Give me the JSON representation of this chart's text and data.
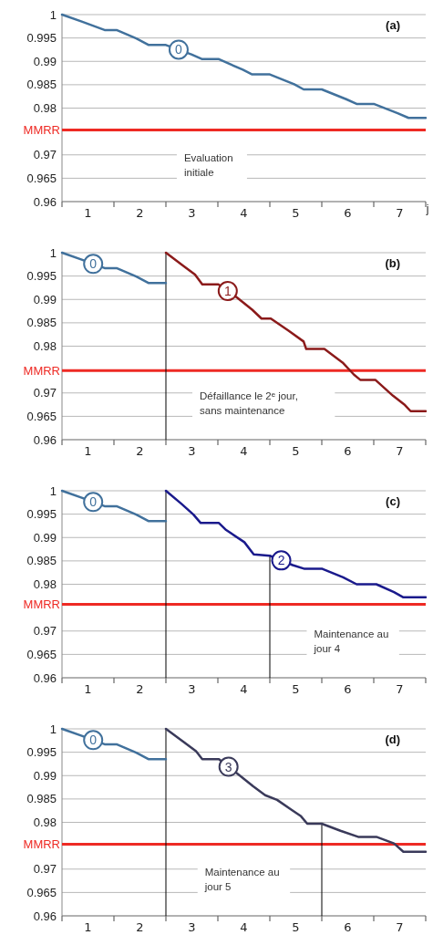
{
  "chart_data": [
    {
      "type": "line",
      "title": "(a)",
      "xlabel": "j",
      "xlim": [
        0.5,
        7.5
      ],
      "ylim": [
        0.96,
        1
      ],
      "xticks": [
        {
          "value": 0.5,
          "label": null
        },
        1,
        {
          "value": 1.5,
          "label": null
        },
        2,
        {
          "value": 2.5,
          "label": null
        },
        3,
        {
          "value": 3.5,
          "label": null
        },
        4,
        {
          "value": 4.5,
          "label": null
        },
        5,
        {
          "value": 5.5,
          "label": null
        },
        6,
        {
          "value": 6.5,
          "label": null
        },
        7,
        {
          "value": 7.5,
          "label": null
        }
      ],
      "yticks": [
        0.96,
        0.965,
        0.97,
        0.98,
        0.985,
        0.99,
        0.995,
        1
      ],
      "grid": "y",
      "legend": false,
      "marker": "none",
      "line_style": "solid",
      "series": [
        {
          "name": "0",
          "color": "#41719c",
          "x": [
            0.5,
            0.88,
            1.32,
            1.55,
            1.93,
            2.17,
            2.5,
            2.99,
            3.19,
            3.51,
            3.98,
            4.16,
            4.5,
            4.97,
            5.15,
            5.5,
            5.97,
            6.17,
            6.5,
            6.96,
            7.17,
            7.5
          ],
          "values": [
            1,
            0.9985,
            0.9967,
            0.9967,
            0.9949,
            0.9935,
            0.9935,
            0.9915,
            0.9905,
            0.9905,
            0.9882,
            0.9872,
            0.9872,
            0.9851,
            0.984,
            0.984,
            0.9819,
            0.9809,
            0.9809,
            0.9789,
            0.9779,
            0.9779
          ]
        }
      ],
      "ref_lines": [
        {
          "axis": "y",
          "value": 0.9753,
          "label": "MMRR",
          "color": "#ee2a24"
        }
      ],
      "annotations": [
        "Evaluation initiale"
      ]
    },
    {
      "type": "line",
      "title": "(b)",
      "xlim": [
        0.5,
        7.5
      ],
      "ylim": [
        0.96,
        1
      ],
      "xticks": [
        {
          "value": 0.5,
          "label": null
        },
        1,
        {
          "value": 1.5,
          "label": null
        },
        2,
        {
          "value": 2.5,
          "label": null
        },
        3,
        {
          "value": 3.5,
          "label": null
        },
        4,
        {
          "value": 4.5,
          "label": null
        },
        5,
        {
          "value": 5.5,
          "label": null
        },
        6,
        {
          "value": 6.5,
          "label": null
        },
        7,
        {
          "value": 7.5,
          "label": null
        }
      ],
      "yticks": [
        0.96,
        0.965,
        0.97,
        0.98,
        0.985,
        0.99,
        0.995,
        1
      ],
      "grid": "y",
      "legend": false,
      "marker": "none",
      "line_style": "solid",
      "series": [
        {
          "name": "0",
          "color": "#41719c",
          "x": [
            0.5,
            0.88,
            1.32,
            1.55,
            1.93,
            2.17,
            2.5
          ],
          "values": [
            1,
            0.9985,
            0.9967,
            0.9967,
            0.9949,
            0.9935,
            0.9935
          ]
        },
        {
          "name": "1",
          "color": "#8b1a1a",
          "x": [
            2.5,
            2.83,
            3.06,
            3.2,
            3.51,
            3.87,
            4.16,
            4.34,
            4.52,
            4.86,
            5.15,
            5.2,
            5.55,
            5.9,
            6.12,
            6.24,
            6.53,
            6.87,
            7.1,
            7.21,
            7.5
          ],
          "values": [
            1,
            0.9972,
            0.9953,
            0.9932,
            0.9932,
            0.9904,
            0.9878,
            0.9859,
            0.9859,
            0.9833,
            0.981,
            0.9794,
            0.9794,
            0.9765,
            0.9739,
            0.9728,
            0.9728,
            0.9694,
            0.9674,
            0.9661,
            0.9661
          ]
        }
      ],
      "ref_lines": [
        {
          "axis": "y",
          "value": 0.9748,
          "label": "MMRR",
          "color": "#ee2a24"
        },
        {
          "axis": "x",
          "value": 2.5,
          "label": null,
          "color": "#000000"
        }
      ],
      "annotations": [
        "Défaillance le 2ᵉ jour, sans maintenance"
      ]
    },
    {
      "type": "line",
      "title": "(c)",
      "xlim": [
        0.5,
        7.5
      ],
      "ylim": [
        0.96,
        1
      ],
      "xticks": [
        {
          "value": 0.5,
          "label": null
        },
        1,
        {
          "value": 1.5,
          "label": null
        },
        2,
        {
          "value": 2.5,
          "label": null
        },
        3,
        {
          "value": 3.5,
          "label": null
        },
        4,
        {
          "value": 4.5,
          "label": null
        },
        5,
        {
          "value": 5.5,
          "label": null
        },
        6,
        {
          "value": 6.5,
          "label": null
        },
        7,
        {
          "value": 7.5,
          "label": null
        }
      ],
      "yticks": [
        0.96,
        0.965,
        0.97,
        0.98,
        0.985,
        0.99,
        0.995,
        1
      ],
      "grid": "y",
      "legend": false,
      "marker": "none",
      "line_style": "solid",
      "series": [
        {
          "name": "0",
          "color": "#41719c",
          "x": [
            0.5,
            0.88,
            1.32,
            1.55,
            1.93,
            2.17,
            2.5
          ],
          "values": [
            1,
            0.9985,
            0.9967,
            0.9967,
            0.9949,
            0.9935,
            0.9935
          ]
        },
        {
          "name": "2",
          "color": "#1a1a8c",
          "x": [
            2.5,
            2.8,
            3.03,
            3.17,
            3.52,
            3.66,
            4.01,
            4.19,
            4.5,
            4.94,
            5.17,
            5.51,
            5.91,
            6.17,
            6.55,
            6.89,
            7.07,
            7.5
          ],
          "values": [
            1,
            0.9972,
            0.9949,
            0.9931,
            0.9931,
            0.9916,
            0.989,
            0.9864,
            0.9861,
            0.9841,
            0.9833,
            0.9833,
            0.9815,
            0.98,
            0.98,
            0.9783,
            0.9772,
            0.9772
          ]
        }
      ],
      "ref_lines": [
        {
          "axis": "y",
          "value": 0.9757,
          "label": "MMRR",
          "color": "#ee2a24"
        },
        {
          "axis": "x",
          "value": 2.5,
          "label": null,
          "color": "#000000"
        },
        {
          "axis": "x",
          "value": 4.5,
          "label": null,
          "color": "#000000"
        }
      ],
      "annotations": [
        "Maintenance au jour 4"
      ]
    },
    {
      "type": "line",
      "title": "(d)",
      "xlim": [
        0.5,
        7.5
      ],
      "ylim": [
        0.96,
        1
      ],
      "xticks": [
        {
          "value": 0.5,
          "label": null
        },
        1,
        {
          "value": 1.5,
          "label": null
        },
        2,
        {
          "value": 2.5,
          "label": null
        },
        3,
        {
          "value": 3.5,
          "label": null
        },
        4,
        {
          "value": 4.5,
          "label": null
        },
        5,
        {
          "value": 5.5,
          "label": null
        },
        6,
        {
          "value": 6.5,
          "label": null
        },
        7,
        {
          "value": 7.5,
          "label": null
        }
      ],
      "yticks": [
        0.96,
        0.965,
        0.97,
        0.98,
        0.985,
        0.99,
        0.995,
        1
      ],
      "grid": "y",
      "legend": false,
      "marker": "none",
      "line_style": "solid",
      "series": [
        {
          "name": "0",
          "color": "#41719c",
          "x": [
            0.5,
            0.88,
            1.32,
            1.55,
            1.93,
            2.17,
            2.5
          ],
          "values": [
            1,
            0.9985,
            0.9967,
            0.9967,
            0.9949,
            0.9935,
            0.9935
          ]
        },
        {
          "name": "3",
          "color": "#3a3a5a",
          "x": [
            2.5,
            2.85,
            3.08,
            3.2,
            3.52,
            3.89,
            4.18,
            4.41,
            4.64,
            4.93,
            5.1,
            5.22,
            5.5,
            5.86,
            6.2,
            6.55,
            6.89,
            7.07,
            7.5
          ],
          "values": [
            1,
            0.9971,
            0.9952,
            0.9935,
            0.9935,
            0.9903,
            0.9877,
            0.9858,
            0.9848,
            0.9826,
            0.9813,
            0.9797,
            0.9797,
            0.9782,
            0.9769,
            0.9769,
            0.9755,
            0.9737,
            0.9737
          ]
        }
      ],
      "ref_lines": [
        {
          "axis": "y",
          "value": 0.9753,
          "label": "MMRR",
          "color": "#ee2a24"
        },
        {
          "axis": "x",
          "value": 2.5,
          "label": null,
          "color": "#000000"
        },
        {
          "axis": "x",
          "value": 5.5,
          "label": null,
          "color": "#000000"
        }
      ],
      "annotations": [
        "Maintenance au jour 5"
      ]
    }
  ]
}
